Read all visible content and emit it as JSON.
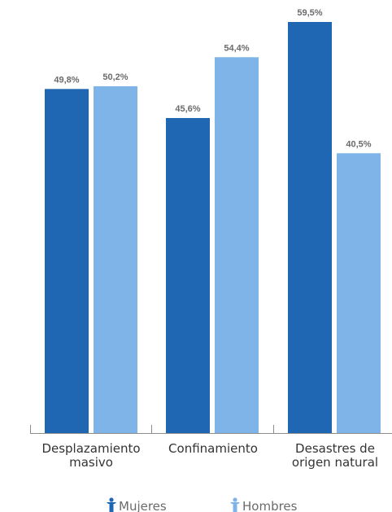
{
  "chart_data": {
    "type": "bar",
    "categories": [
      [
        "Desplazamiento",
        "masivo"
      ],
      [
        "Confinamiento"
      ],
      [
        "Desastres de",
        "origen natural"
      ]
    ],
    "series": [
      {
        "name": "Mujeres",
        "values": [
          49.8,
          45.6,
          59.5
        ],
        "labels": [
          "49,8%",
          "45,6%",
          "59,5%"
        ],
        "color": "#1f67b3"
      },
      {
        "name": "Hombres",
        "values": [
          50.2,
          54.4,
          40.5
        ],
        "labels": [
          "50,2%",
          "54,4%",
          "40,5%"
        ],
        "color": "#7fb4e8"
      }
    ],
    "ylim": [
      0,
      59.5
    ],
    "grid": false,
    "legend_position": "bottom-center",
    "legend_icons": [
      "person-icon",
      "person-icon"
    ]
  }
}
